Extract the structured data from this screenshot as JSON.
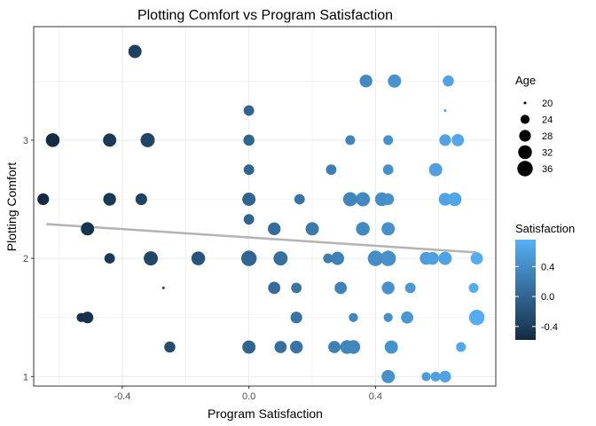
{
  "chart_data": {
    "type": "scatter",
    "title": "Plotting Comfort vs Program Satisfaction",
    "xlabel": "Program Satisfaction",
    "ylabel": "Plotting Comfort",
    "xlim": [
      -0.68,
      0.78
    ],
    "ylim": [
      0.92,
      3.96
    ],
    "x_ticks": [
      -0.4,
      0.0,
      0.4
    ],
    "x_tick_labels": [
      "-0.4",
      "0.0",
      "0.4"
    ],
    "y_ticks": [
      1,
      2,
      3
    ],
    "y_tick_labels": [
      "1",
      "2",
      "3"
    ],
    "grid": true,
    "legend_placement": "right",
    "size_legend": {
      "title": "Age",
      "values": [
        20,
        24,
        28,
        32,
        36
      ],
      "labels": [
        "20",
        "24",
        "28",
        "32",
        "36"
      ]
    },
    "color_legend": {
      "title": "Satisfaction",
      "range": [
        -0.58,
        0.76
      ],
      "ticks": [
        0.4,
        0.0,
        -0.4
      ],
      "labels": [
        "0.4",
        "0.0",
        "-0.4"
      ],
      "low_color": "#132B43",
      "high_color": "#56B1F7"
    },
    "trend_line": {
      "color": "#b3b3b3",
      "x": [
        -0.64,
        0.72
      ],
      "y": [
        2.29,
        2.05
      ]
    },
    "points": [
      {
        "x": -0.36,
        "y": 3.75,
        "age": 31
      },
      {
        "x": 0.37,
        "y": 3.5,
        "age": 30
      },
      {
        "x": 0.46,
        "y": 3.5,
        "age": 31
      },
      {
        "x": 0.63,
        "y": 3.5,
        "age": 27
      },
      {
        "x": 0.0,
        "y": 3.25,
        "age": 26
      },
      {
        "x": 0.62,
        "y": 3.25,
        "age": 20
      },
      {
        "x": -0.62,
        "y": 3.0,
        "age": 32
      },
      {
        "x": -0.44,
        "y": 3.0,
        "age": 31
      },
      {
        "x": -0.32,
        "y": 3.0,
        "age": 33
      },
      {
        "x": 0.0,
        "y": 3.0,
        "age": 27
      },
      {
        "x": 0.32,
        "y": 3.0,
        "age": 25
      },
      {
        "x": 0.44,
        "y": 3.0,
        "age": 25
      },
      {
        "x": 0.62,
        "y": 3.0,
        "age": 28
      },
      {
        "x": 0.66,
        "y": 3.0,
        "age": 29
      },
      {
        "x": 0.0,
        "y": 2.75,
        "age": 26
      },
      {
        "x": 0.26,
        "y": 2.75,
        "age": 26
      },
      {
        "x": 0.44,
        "y": 2.75,
        "age": 26
      },
      {
        "x": 0.59,
        "y": 2.75,
        "age": 31
      },
      {
        "x": -0.65,
        "y": 2.5,
        "age": 28
      },
      {
        "x": -0.44,
        "y": 2.5,
        "age": 30
      },
      {
        "x": -0.34,
        "y": 2.5,
        "age": 28
      },
      {
        "x": 0.0,
        "y": 2.5,
        "age": 31
      },
      {
        "x": 0.16,
        "y": 2.5,
        "age": 26
      },
      {
        "x": 0.32,
        "y": 2.5,
        "age": 33
      },
      {
        "x": 0.36,
        "y": 2.5,
        "age": 33
      },
      {
        "x": 0.42,
        "y": 2.5,
        "age": 32
      },
      {
        "x": 0.44,
        "y": 2.5,
        "age": 28
      },
      {
        "x": 0.62,
        "y": 2.5,
        "age": 30
      },
      {
        "x": 0.65,
        "y": 2.5,
        "age": 32
      },
      {
        "x": 0.0,
        "y": 2.33,
        "age": 26
      },
      {
        "x": -0.51,
        "y": 2.25,
        "age": 31
      },
      {
        "x": 0.08,
        "y": 2.25,
        "age": 30
      },
      {
        "x": 0.2,
        "y": 2.25,
        "age": 31
      },
      {
        "x": 0.36,
        "y": 2.25,
        "age": 32
      },
      {
        "x": 0.44,
        "y": 2.25,
        "age": 31
      },
      {
        "x": -0.44,
        "y": 2.0,
        "age": 26
      },
      {
        "x": -0.31,
        "y": 2.0,
        "age": 33
      },
      {
        "x": -0.16,
        "y": 2.0,
        "age": 32
      },
      {
        "x": 0.0,
        "y": 2.0,
        "age": 36
      },
      {
        "x": 0.1,
        "y": 2.0,
        "age": 33
      },
      {
        "x": 0.25,
        "y": 2.0,
        "age": 25
      },
      {
        "x": 0.28,
        "y": 2.0,
        "age": 31
      },
      {
        "x": 0.4,
        "y": 2.0,
        "age": 36
      },
      {
        "x": 0.44,
        "y": 2.0,
        "age": 36
      },
      {
        "x": 0.56,
        "y": 2.0,
        "age": 30
      },
      {
        "x": 0.58,
        "y": 2.0,
        "age": 30
      },
      {
        "x": 0.62,
        "y": 2.0,
        "age": 31
      },
      {
        "x": 0.72,
        "y": 2.0,
        "age": 29
      },
      {
        "x": -0.27,
        "y": 1.75,
        "age": 20
      },
      {
        "x": 0.08,
        "y": 1.75,
        "age": 29
      },
      {
        "x": 0.15,
        "y": 1.75,
        "age": 26
      },
      {
        "x": 0.29,
        "y": 1.75,
        "age": 29
      },
      {
        "x": 0.44,
        "y": 1.75,
        "age": 30
      },
      {
        "x": 0.51,
        "y": 1.75,
        "age": 26
      },
      {
        "x": 0.71,
        "y": 1.75,
        "age": 25
      },
      {
        "x": -0.53,
        "y": 1.5,
        "age": 24
      },
      {
        "x": -0.51,
        "y": 1.5,
        "age": 28
      },
      {
        "x": 0.15,
        "y": 1.5,
        "age": 28
      },
      {
        "x": 0.33,
        "y": 1.5,
        "age": 24
      },
      {
        "x": 0.44,
        "y": 1.5,
        "age": 24
      },
      {
        "x": 0.5,
        "y": 1.5,
        "age": 29
      },
      {
        "x": 0.72,
        "y": 1.5,
        "age": 36
      },
      {
        "x": -0.25,
        "y": 1.25,
        "age": 27
      },
      {
        "x": 0.0,
        "y": 1.25,
        "age": 31
      },
      {
        "x": 0.1,
        "y": 1.25,
        "age": 29
      },
      {
        "x": 0.15,
        "y": 1.25,
        "age": 30
      },
      {
        "x": 0.27,
        "y": 1.25,
        "age": 29
      },
      {
        "x": 0.31,
        "y": 1.25,
        "age": 32
      },
      {
        "x": 0.33,
        "y": 1.25,
        "age": 32
      },
      {
        "x": 0.45,
        "y": 1.25,
        "age": 31
      },
      {
        "x": 0.67,
        "y": 1.25,
        "age": 25
      },
      {
        "x": 0.44,
        "y": 1.0,
        "age": 31
      },
      {
        "x": 0.56,
        "y": 1.0,
        "age": 24
      },
      {
        "x": 0.59,
        "y": 1.0,
        "age": 25
      },
      {
        "x": 0.62,
        "y": 1.0,
        "age": 28
      }
    ]
  }
}
